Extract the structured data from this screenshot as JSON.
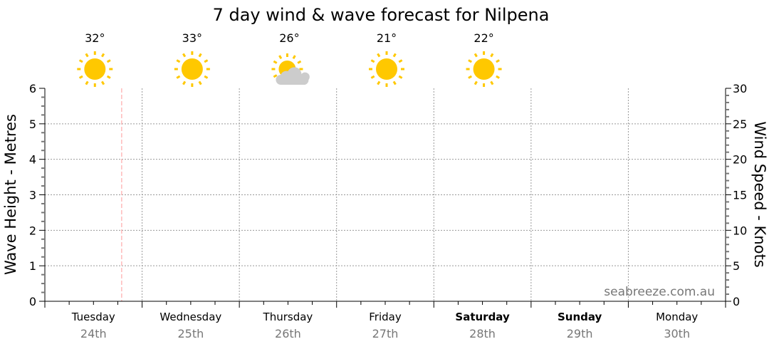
{
  "chart_data": {
    "type": "line",
    "title": "7 day wind & wave forecast for Nilpena",
    "ylabel": "Wave Height - Metres",
    "y2label": "Wind Speed - Knots",
    "ylim": [
      0,
      6
    ],
    "y2lim": [
      0,
      30
    ],
    "yticks": [
      "0",
      "1",
      "2",
      "3",
      "4",
      "5",
      "6"
    ],
    "y2ticks": [
      "0",
      "5",
      "10",
      "15",
      "20",
      "25",
      "30"
    ],
    "grid": true,
    "days": [
      {
        "name": "Tuesday",
        "date": "24th",
        "bold": false
      },
      {
        "name": "Wednesday",
        "date": "25th",
        "bold": false
      },
      {
        "name": "Thursday",
        "date": "26th",
        "bold": false
      },
      {
        "name": "Friday",
        "date": "27th",
        "bold": false
      },
      {
        "name": "Saturday",
        "date": "28th",
        "bold": true
      },
      {
        "name": "Sunday",
        "date": "29th",
        "bold": true
      },
      {
        "name": "Monday",
        "date": "30th",
        "bold": false
      }
    ],
    "weather": [
      {
        "temp": "32°",
        "icon": "sun-icon"
      },
      {
        "temp": "33°",
        "icon": "sun-icon"
      },
      {
        "temp": "26°",
        "icon": "partly-cloudy-icon"
      },
      {
        "temp": "21°",
        "icon": "sun-icon"
      },
      {
        "temp": "22°",
        "icon": "sun-icon"
      }
    ],
    "current_time_day_fraction": 0.79,
    "series": [],
    "watermark": "seabreeze.com.au",
    "colors": {
      "sun": "#ffc800",
      "cloud": "#cccccc",
      "now_line": "#ff9999",
      "grid": "#999999",
      "date": "#777777"
    }
  }
}
